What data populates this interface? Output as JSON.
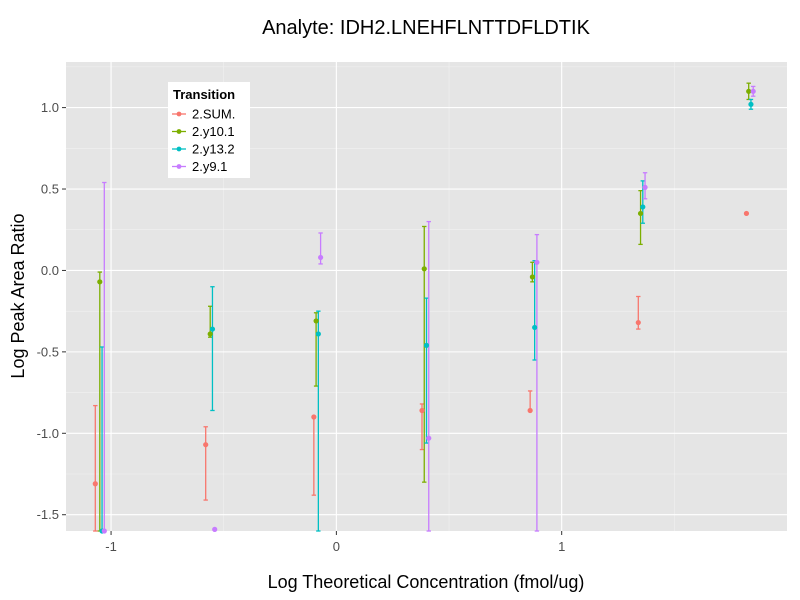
{
  "chart_data": {
    "type": "scatter",
    "title": "Analyte: IDH2.LNEHFLNTTDFLDTIK",
    "xlabel": "Log Theoretical Concentration (fmol/ug)",
    "ylabel": "Log Peak Area Ratio",
    "xlim": [
      -1.2,
      2.0
    ],
    "ylim": [
      -1.6,
      1.28
    ],
    "x_ticks": [
      -1,
      0,
      1
    ],
    "x_tick_labels": [
      "-1",
      "0",
      "1"
    ],
    "y_ticks": [
      -1.5,
      -1.0,
      -0.5,
      0.0,
      0.5,
      1.0
    ],
    "y_tick_labels": [
      "-1.5",
      "-1.0",
      "-0.5",
      "0.0",
      "0.5",
      "1.0"
    ],
    "grid": true,
    "legend": {
      "title": "Transition",
      "position": "top-left"
    },
    "series": [
      {
        "name": "2.SUM.",
        "color": "#F8766D",
        "points": [
          {
            "x": -1.07,
            "y": -1.31,
            "lo": -1.6,
            "hi": -0.83
          },
          {
            "x": -0.58,
            "y": -1.07,
            "lo": -1.41,
            "hi": -0.96
          },
          {
            "x": -0.1,
            "y": -0.9,
            "lo": -1.38,
            "hi": -0.9
          },
          {
            "x": 0.38,
            "y": -0.86,
            "lo": -1.1,
            "hi": -0.82
          },
          {
            "x": 0.86,
            "y": -0.86,
            "lo": -0.86,
            "hi": -0.74
          },
          {
            "x": 1.34,
            "y": -0.32,
            "lo": -0.36,
            "hi": -0.16
          },
          {
            "x": 1.82,
            "y": 0.35,
            "lo": 0.35,
            "hi": 0.35
          }
        ]
      },
      {
        "name": "2.y10.1",
        "color": "#7CAE00",
        "points": [
          {
            "x": -1.05,
            "y": -0.07,
            "lo": -1.6,
            "hi": -0.01
          },
          {
            "x": -0.56,
            "y": -0.39,
            "lo": -0.41,
            "hi": -0.22
          },
          {
            "x": -0.09,
            "y": -0.31,
            "lo": -0.71,
            "hi": -0.26
          },
          {
            "x": 0.39,
            "y": 0.01,
            "lo": -1.3,
            "hi": 0.27
          },
          {
            "x": 0.87,
            "y": -0.04,
            "lo": -0.07,
            "hi": 0.05
          },
          {
            "x": 1.35,
            "y": 0.35,
            "lo": 0.16,
            "hi": 0.49
          },
          {
            "x": 1.83,
            "y": 1.1,
            "lo": 1.05,
            "hi": 1.15
          }
        ]
      },
      {
        "name": "2.y13.2",
        "color": "#00BFC4",
        "points": [
          {
            "x": -1.04,
            "y": -1.6,
            "lo": -1.6,
            "hi": -0.47
          },
          {
            "x": -0.55,
            "y": -0.36,
            "lo": -0.86,
            "hi": -0.1
          },
          {
            "x": -0.08,
            "y": -0.39,
            "lo": -1.6,
            "hi": -0.25
          },
          {
            "x": 0.4,
            "y": -0.46,
            "lo": -1.06,
            "hi": -0.17
          },
          {
            "x": 0.88,
            "y": -0.35,
            "lo": -0.55,
            "hi": 0.06
          },
          {
            "x": 1.36,
            "y": 0.39,
            "lo": 0.29,
            "hi": 0.55
          },
          {
            "x": 1.84,
            "y": 1.02,
            "lo": 0.99,
            "hi": 1.05
          }
        ]
      },
      {
        "name": "2.y9.1",
        "color": "#C77CFF",
        "points": [
          {
            "x": -1.03,
            "y": -1.6,
            "lo": -1.6,
            "hi": 0.54
          },
          {
            "x": -0.54,
            "y": -1.59,
            "lo": -1.59,
            "hi": -1.59
          },
          {
            "x": -0.07,
            "y": 0.08,
            "lo": 0.04,
            "hi": 0.23
          },
          {
            "x": 0.41,
            "y": -1.03,
            "lo": -1.6,
            "hi": 0.3
          },
          {
            "x": 0.89,
            "y": 0.05,
            "lo": -1.6,
            "hi": 0.22
          },
          {
            "x": 1.37,
            "y": 0.51,
            "lo": 0.44,
            "hi": 0.6
          },
          {
            "x": 1.85,
            "y": 1.1,
            "lo": 1.07,
            "hi": 1.13
          }
        ]
      }
    ]
  }
}
